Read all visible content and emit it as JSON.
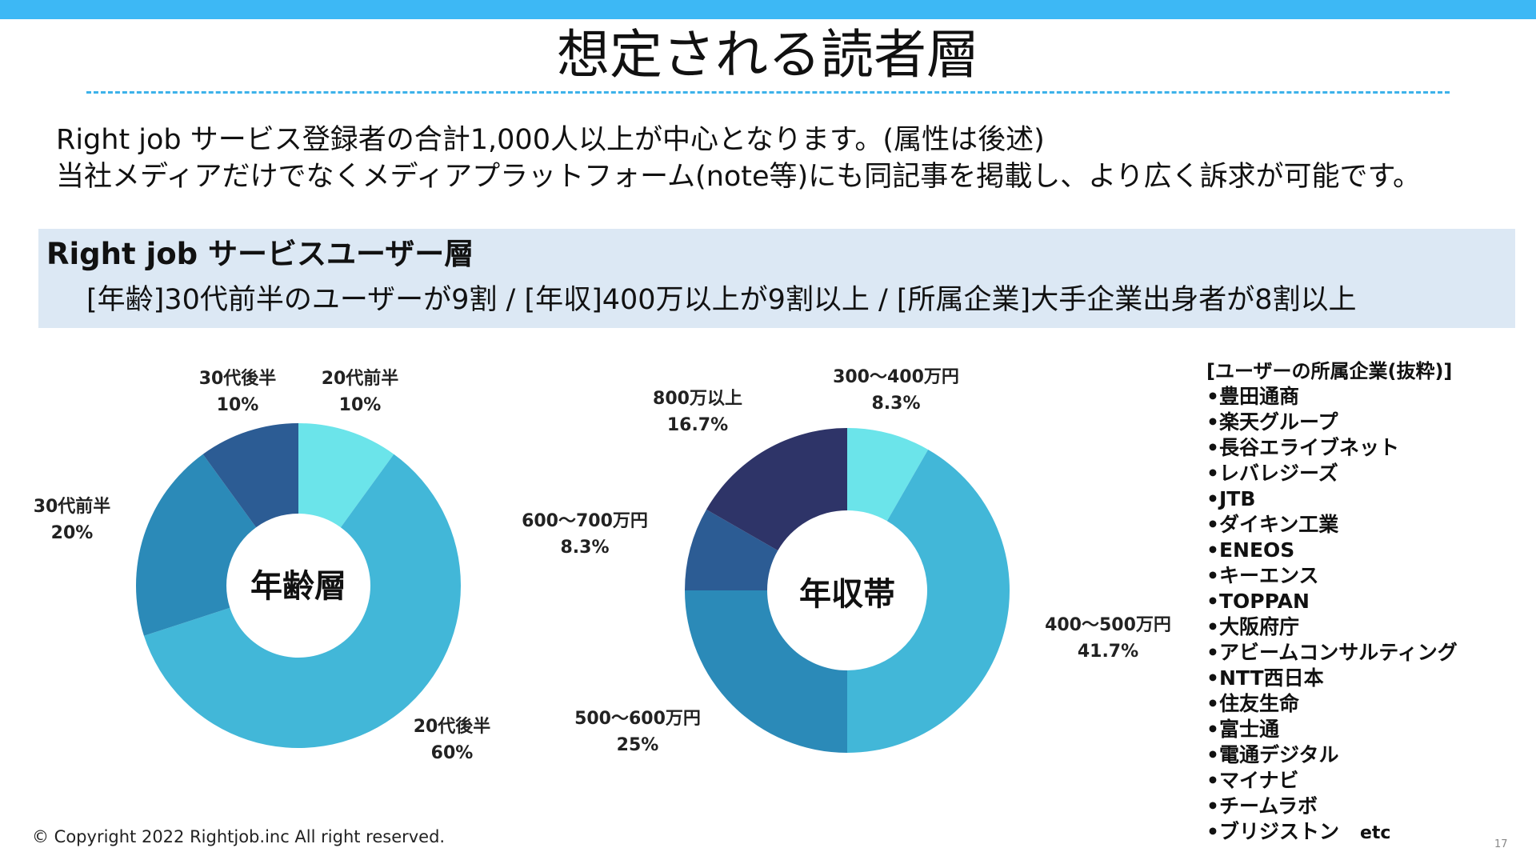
{
  "colors": {
    "topbar": "#3db8f5",
    "panel_bg": "#dce8f4",
    "label_text": "#222222"
  },
  "slide": {
    "title": "想定される読者層",
    "intro_lines": [
      "Right job サービス登録者の合計1,000人以上が中心となります。(属性は後述)",
      "当社メディアだけでなくメディアプラットフォーム(note等)にも同記事を掲載し、より広く訴求が可能です。"
    ],
    "panel_title": "Right job サービスユーザー層",
    "panel_subtitle": "[年齢]30代前半のユーザーが9割 / [年収]400万以上が9割以上 / [所属企業]大手企業出身者が8割以上",
    "copyright": "© Copyright 2022 Rightjob.inc All right reserved.",
    "page_number": "17"
  },
  "chart_data": [
    {
      "type": "pie",
      "donut": true,
      "center_label": "年齢層",
      "slices": [
        {
          "label": "20代前半",
          "value": 10,
          "value_label": "10%",
          "color": "#6be4ea"
        },
        {
          "label": "20代後半",
          "value": 60,
          "value_label": "60%",
          "color": "#42b7d8"
        },
        {
          "label": "30代前半",
          "value": 20,
          "value_label": "20%",
          "color": "#2b8ab8"
        },
        {
          "label": "30代後半",
          "value": 10,
          "value_label": "10%",
          "color": "#2c5c94"
        }
      ]
    },
    {
      "type": "pie",
      "donut": true,
      "center_label": "年収帯",
      "slices": [
        {
          "label": "300〜400万円",
          "value": 8.3,
          "value_label": "8.3%",
          "color": "#6be4ea"
        },
        {
          "label": "400〜500万円",
          "value": 41.7,
          "value_label": "41.7%",
          "color": "#42b7d8"
        },
        {
          "label": "500〜600万円",
          "value": 25,
          "value_label": "25%",
          "color": "#2b8ab8"
        },
        {
          "label": "600〜700万円",
          "value": 8.3,
          "value_label": "8.3%",
          "color": "#2c5c94"
        },
        {
          "label": "800万以上",
          "value": 16.7,
          "value_label": "16.7%",
          "color": "#2e3468"
        }
      ]
    }
  ],
  "companies": {
    "heading": "[ユーザーの所属企業(抜粋)]",
    "items": [
      "•豊田通商",
      "•楽天グループ",
      "•長谷エライブネット",
      "•レバレジーズ",
      "•JTB",
      "•ダイキン工業",
      "•ENEOS",
      "•キーエンス",
      "•TOPPAN",
      "•大阪府庁",
      "•アビームコンサルティング",
      "•NTT西日本",
      "•住友生命",
      "•富士通",
      "•電通デジタル",
      "•マイナビ",
      "•チームラボ",
      "•ブリジストン"
    ],
    "suffix": "etc"
  }
}
